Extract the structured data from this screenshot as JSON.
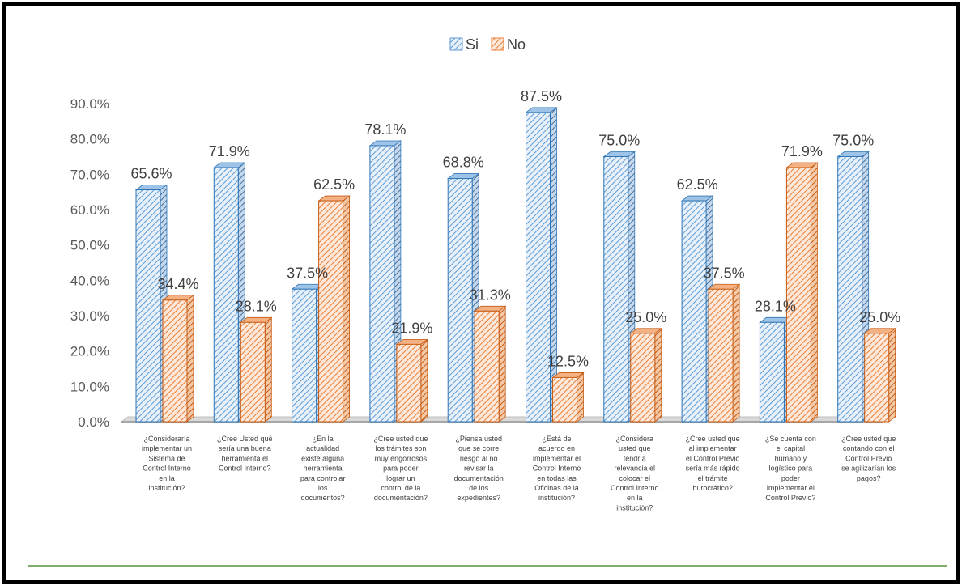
{
  "chart_data": {
    "type": "bar",
    "title": "",
    "xlabel": "",
    "ylabel": "",
    "ylim": [
      0,
      90
    ],
    "yticks": [
      "0.0%",
      "10.0%",
      "20.0%",
      "30.0%",
      "40.0%",
      "50.0%",
      "60.0%",
      "70.0%",
      "80.0%",
      "90.0%"
    ],
    "legend_position": "top-center",
    "categories": [
      [
        "¿Consideraría",
        "implementar un",
        "Sistema de",
        "Control Interno",
        "en la",
        "institución?"
      ],
      [
        "¿Cree Usted qué",
        "sería una buena",
        "herramienta el",
        "Control Interno?"
      ],
      [
        "¿En la",
        "actualidad",
        "existe alguna",
        "herramienta",
        "para controlar",
        "los",
        "documentos?"
      ],
      [
        "¿Cree usted que",
        "los trámites son",
        "muy engorrosos",
        "para poder",
        "lograr un",
        "control de la",
        "documentación?"
      ],
      [
        "¿Piensa usted",
        "que se corre",
        "riesgo al no",
        "revisar la",
        "documentación",
        "de los",
        "expedientes?"
      ],
      [
        "¿Está de",
        "acuerdo en",
        "implementar el",
        "Control Interno",
        "en todas las",
        "Oficinas de la",
        "institución?"
      ],
      [
        "¿Considera",
        "usted que",
        "tendría",
        "relevancia el",
        "colocar el",
        "Control Interno",
        "en la",
        "institución?"
      ],
      [
        "¿Cree usted que",
        "al implementar",
        "el Control Previo",
        "sería más rápido",
        "el trámite",
        "burocrático?"
      ],
      [
        "¿Se cuenta con",
        "el capital",
        "humano y",
        "logístico para",
        "poder",
        "implementar el",
        "Control Previo?"
      ],
      [
        "¿Cree usted que",
        "contando con el",
        "Control Previo",
        "se agilizarían los",
        "pagos?"
      ]
    ],
    "series": [
      {
        "name": "Si",
        "color": "#5b9bd5",
        "values": [
          65.6,
          71.9,
          37.5,
          78.1,
          68.8,
          87.5,
          75.0,
          62.5,
          28.1,
          75.0
        ],
        "labels": [
          "65.6%",
          "71.9%",
          "37.5%",
          "78.1%",
          "68.8%",
          "87.5%",
          "75.0%",
          "62.5%",
          "28.1%",
          "75.0%"
        ]
      },
      {
        "name": "No",
        "color": "#ed7d31",
        "values": [
          34.4,
          28.1,
          62.5,
          21.9,
          31.3,
          12.5,
          25.0,
          37.5,
          71.9,
          25.0
        ],
        "labels": [
          "34.4%",
          "28.1%",
          "62.5%",
          "21.9%",
          "31.3%",
          "12.5%",
          "25.0%",
          "37.5%",
          "71.9%",
          "25.0%"
        ]
      }
    ]
  }
}
